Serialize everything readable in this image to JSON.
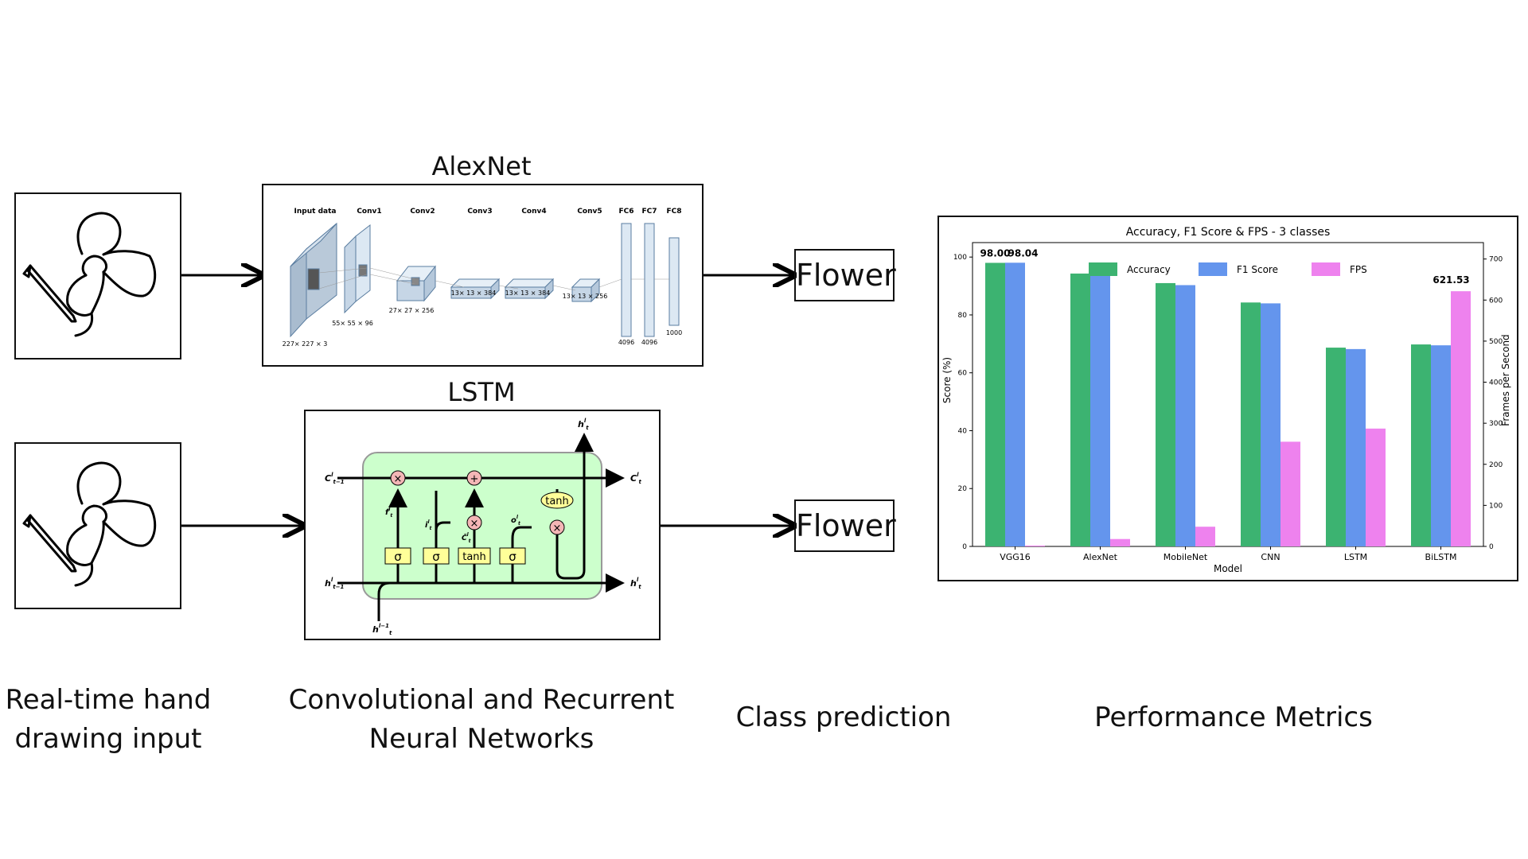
{
  "titles": {
    "alexnet": "AlexNet",
    "lstm": "LSTM"
  },
  "outputs": {
    "top": "Flower",
    "bottom": "Flower"
  },
  "captions": {
    "input": [
      "Real-time hand",
      "drawing input"
    ],
    "networks": [
      "Convolutional and Recurrent",
      "Neural Networks"
    ],
    "prediction": "Class prediction",
    "metrics": "Performance Metrics"
  },
  "alexnet": {
    "layers": [
      "Input data",
      "Conv1",
      "Conv2",
      "Conv3",
      "Conv4",
      "Conv5",
      "FC6",
      "FC7",
      "FC8"
    ],
    "dims": [
      "227× 227 × 3",
      "55× 55 × 96",
      "27× 27 × 256",
      "13× 13 × 384",
      "13× 13 × 384",
      "13× 13 × 256",
      "4096",
      "4096",
      "1000"
    ]
  },
  "lstm_diagram": {
    "gates": [
      "σ",
      "σ",
      "tanh",
      "σ"
    ],
    "ops": {
      "multiply": "×",
      "add": "+",
      "tanh": "tanh"
    },
    "labels": {
      "c_in": "C",
      "c_in_sup": "l",
      "c_in_sub": "t−1",
      "c_out": "C",
      "c_out_sup": "l",
      "c_out_sub": "t",
      "h_in": "h",
      "h_in_sup": "l",
      "h_in_sub": "t−1",
      "h_out": "h",
      "h_out_sup": "l",
      "h_out_sub": "t",
      "h_top": "h",
      "h_top_sup": "l",
      "h_top_sub": "t",
      "x_in": "h",
      "x_in_sup": "l−1",
      "x_in_sub": "t",
      "f": "f",
      "i": "i",
      "o": "o",
      "c_tilde": "C̃",
      "gate_sub": "t",
      "gate_sup": "l"
    }
  },
  "colors": {
    "accuracy": "#3cb371",
    "f1": "#6495ed",
    "fps": "#ee82ee",
    "lstm_cell": "#ccffcc",
    "gate_box": "#ffff99",
    "op_circle": "#f4b6b6"
  },
  "chart_data": {
    "type": "bar",
    "title": "Accuracy, F1 Score & FPS - 3 classes",
    "xlabel": "Model",
    "ylabel": "Score (%)",
    "y2label": "Frames per Second",
    "categories": [
      "VGG16",
      "AlexNet",
      "MobileNet",
      "CNN",
      "LSTM",
      "BiLSTM"
    ],
    "series": [
      {
        "name": "Accuracy",
        "axis": "left",
        "values": [
          98.0,
          94.3,
          91.0,
          84.3,
          68.7,
          69.8
        ]
      },
      {
        "name": "F1 Score",
        "axis": "right_no",
        "values": [
          98.04,
          94.4,
          90.3,
          84.0,
          68.2,
          69.5
        ]
      },
      {
        "name": "FPS",
        "axis": "right",
        "values": [
          2,
          18,
          48,
          255,
          287,
          621.53
        ]
      }
    ],
    "ylim": [
      0,
      105
    ],
    "y2lim": [
      0,
      740
    ],
    "yticks": [
      0,
      20,
      40,
      60,
      80,
      100
    ],
    "y2ticks": [
      0,
      100,
      200,
      300,
      400,
      500,
      600,
      700
    ],
    "data_labels": {
      "accuracy_vgg16": "98.00",
      "f1_vgg16": "98.04",
      "fps_bilstm": "621.53"
    },
    "legend": "top-center",
    "grid": false
  }
}
